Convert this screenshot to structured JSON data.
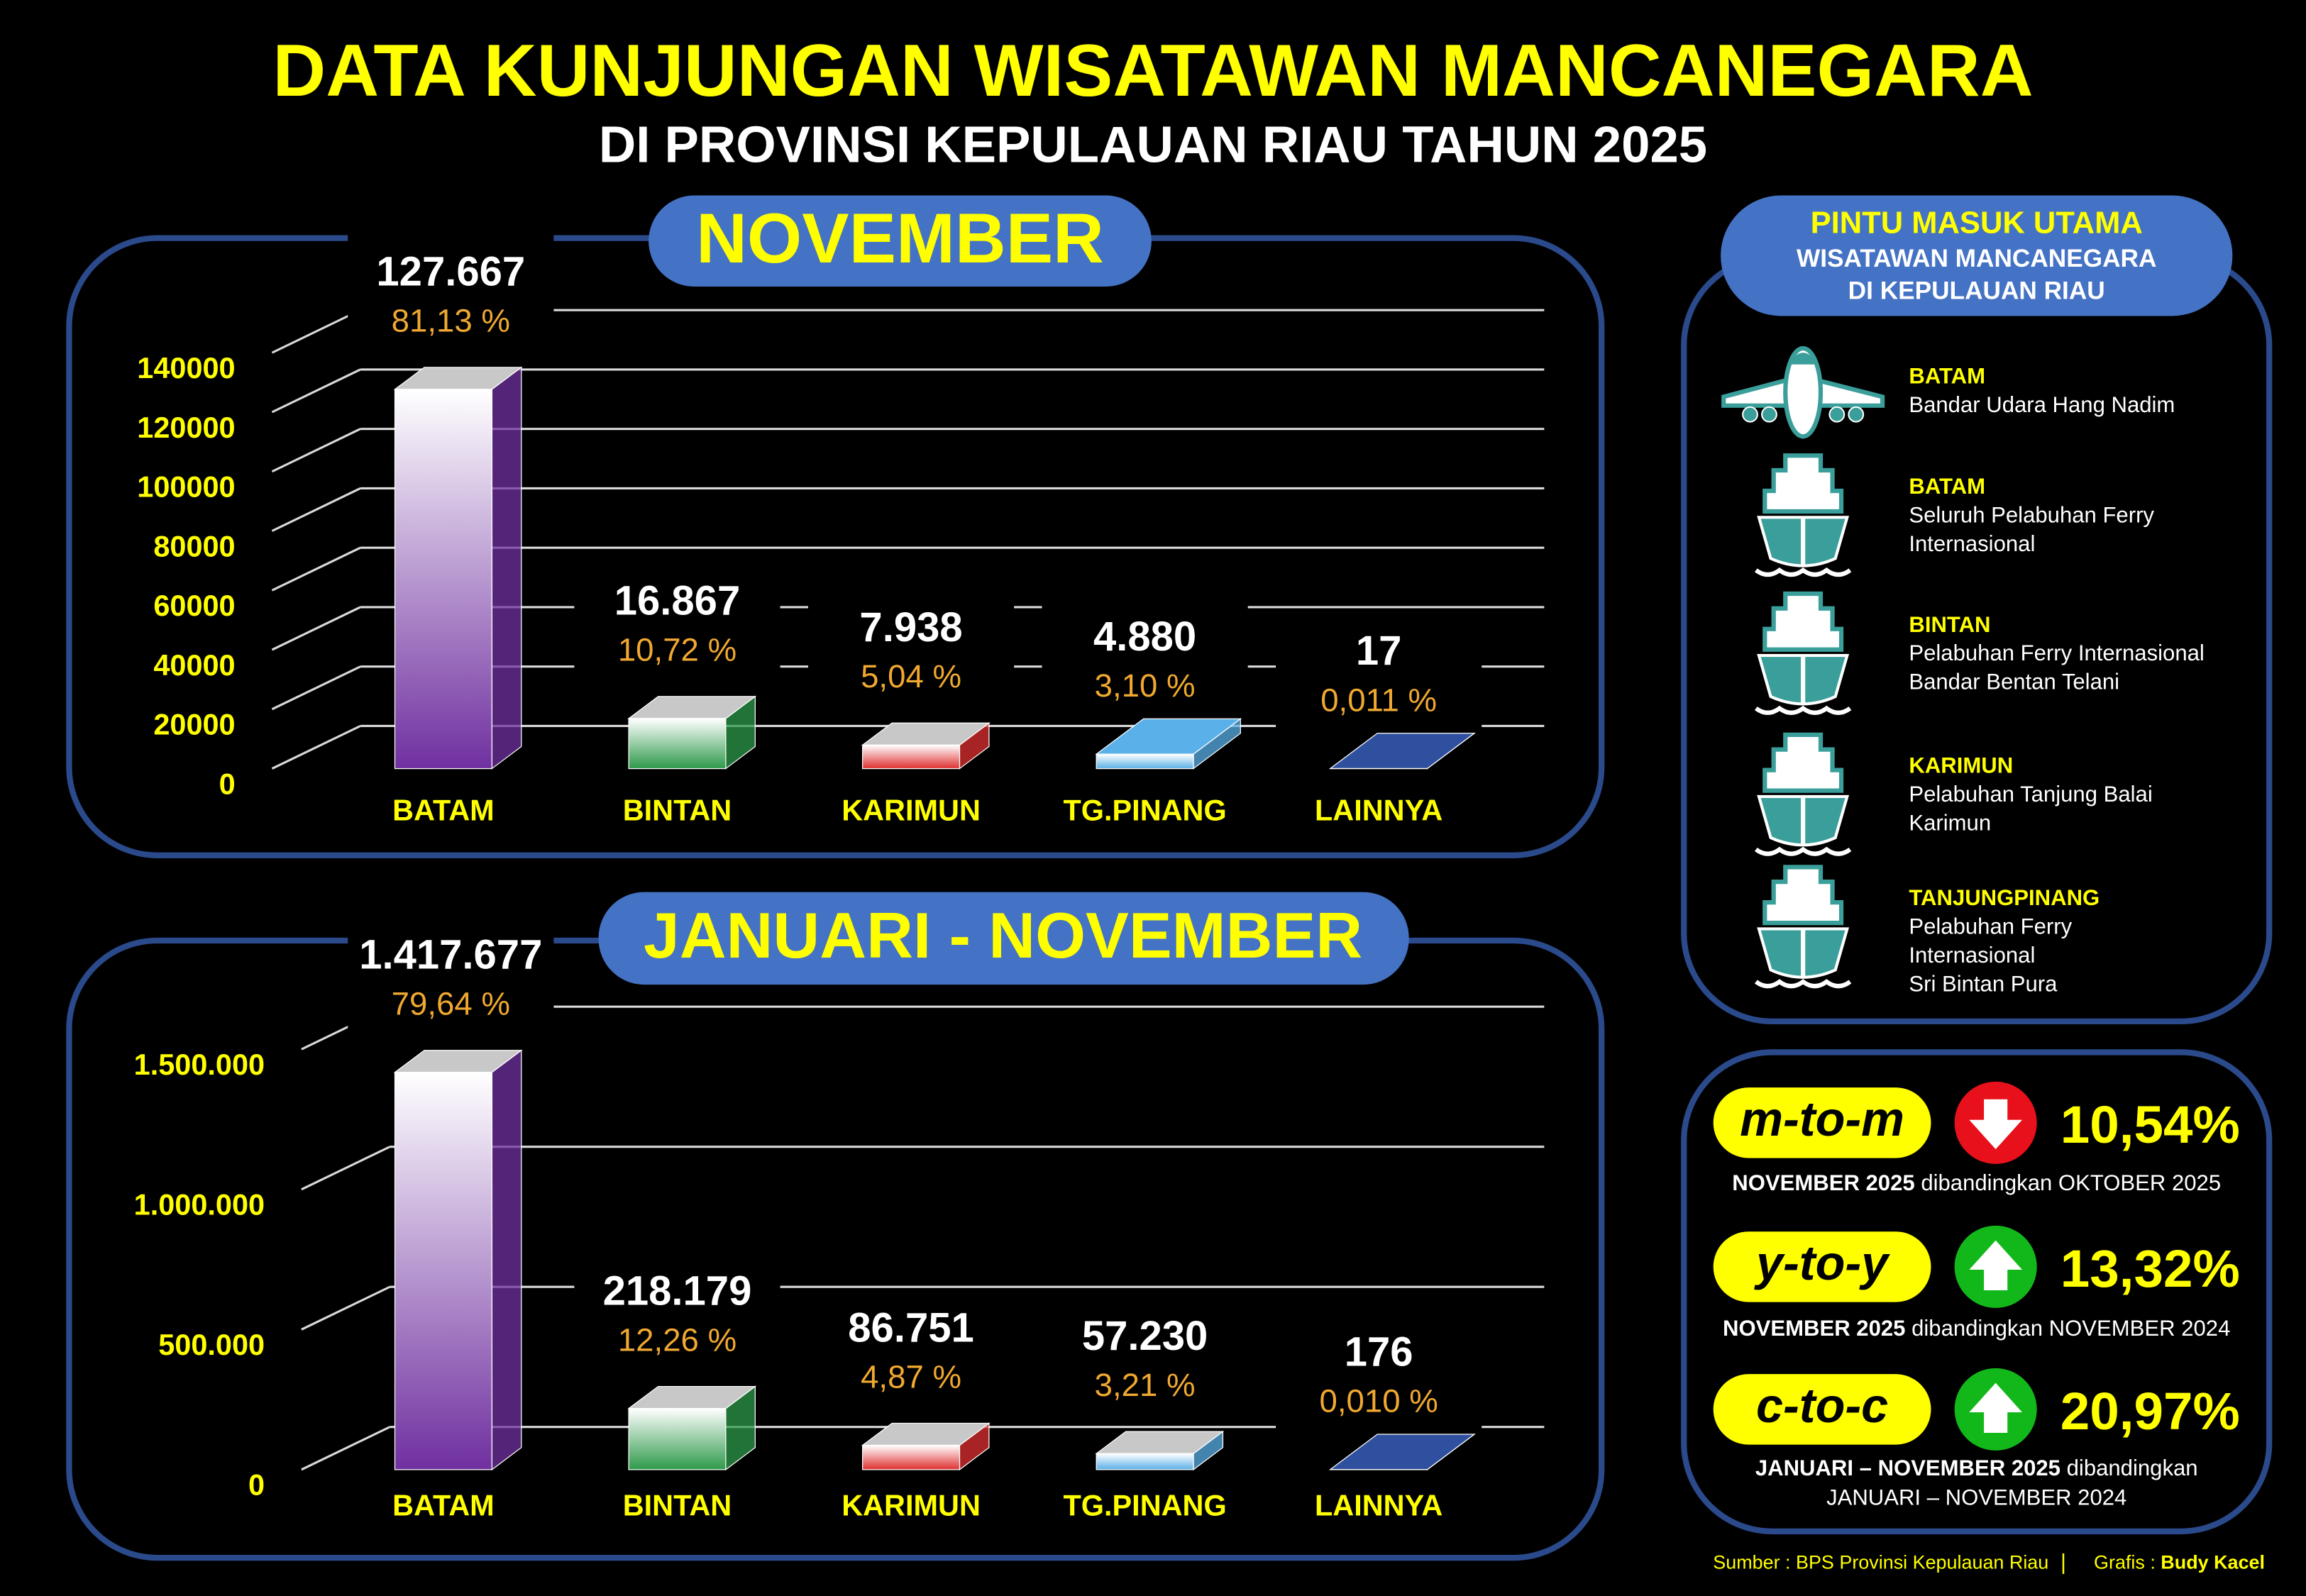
{
  "header": {
    "title": "DATA KUNJUNGAN WISATAWAN MANCANEGARA",
    "subtitle": "DI PROVINSI KEPULAUAN RIAU TAHUN 2025"
  },
  "chart_data": [
    {
      "type": "bar",
      "title": "NOVEMBER",
      "categories": [
        "BATAM",
        "BINTAN",
        "KARIMUN",
        "TG.PINANG",
        "LAINNYA"
      ],
      "values": [
        127667,
        16867,
        7938,
        4880,
        17
      ],
      "value_labels": [
        "127.667",
        "16.867",
        "7.938",
        "4.880",
        "17"
      ],
      "shares": [
        81.13,
        10.72,
        5.04,
        3.1,
        0.011
      ],
      "share_labels": [
        "81,13 %",
        "10,72 %",
        "5,04 %",
        "3,10 %",
        "0,011 %"
      ],
      "colors": [
        "#7030a0",
        "#2e9a4a",
        "#e03030",
        "#5ab0e8",
        "#2f4f9f"
      ],
      "ylim": [
        0,
        140000
      ],
      "yticks": [
        0,
        20000,
        40000,
        60000,
        80000,
        100000,
        120000,
        140000
      ],
      "grid": true
    },
    {
      "type": "bar",
      "title": "JANUARI - NOVEMBER",
      "categories": [
        "BATAM",
        "BINTAN",
        "KARIMUN",
        "TG.PINANG",
        "LAINNYA"
      ],
      "values": [
        1417677,
        218179,
        86751,
        57230,
        176
      ],
      "value_labels": [
        "1.417.677",
        "218.179",
        "86.751",
        "57.230",
        "176"
      ],
      "shares": [
        79.64,
        12.26,
        4.87,
        3.21,
        0.01
      ],
      "share_labels": [
        "79,64 %",
        "12,26 %",
        "4,87 %",
        "3,21 %",
        "0,010 %"
      ],
      "colors": [
        "#7030a0",
        "#2e9a4a",
        "#e03030",
        "#5ab0e8",
        "#2f4f9f"
      ],
      "ylim": [
        0,
        1500000
      ],
      "yticks": [
        0,
        {
          "value": 500000,
          "label": "500.000"
        },
        {
          "value": 1000000,
          "label": "1.000.000"
        },
        {
          "value": 1500000,
          "label": "1.500.000"
        }
      ],
      "grid": true
    }
  ],
  "entry_points": {
    "title": "PINTU MASUK UTAMA",
    "subtitle_lines": [
      "WISATAWAN MANCANEGARA",
      "DI KEPULAUAN RIAU"
    ],
    "items": [
      {
        "name": "BATAM",
        "lines": [
          "Bandar Udara Hang Nadim"
        ]
      },
      {
        "name": "BATAM",
        "lines": [
          "Seluruh Pelabuhan Ferry",
          "Internasional"
        ]
      },
      {
        "name": "BINTAN",
        "lines": [
          "Pelabuhan Ferry Internasional",
          "Bandar Bentan Telani"
        ]
      },
      {
        "name": "KARIMUN",
        "lines": [
          "Pelabuhan Tanjung Balai",
          "Karimun"
        ]
      },
      {
        "name": "TANJUNGPINANG",
        "lines": [
          "Pelabuhan Ferry",
          "Internasional",
          "Sri Bintan Pura"
        ]
      }
    ]
  },
  "growth": [
    {
      "label": "m-to-m",
      "value": "10,54%",
      "note_bold": "NOVEMBER 2025",
      "note": "dibandingkan OKTOBER 2025"
    },
    {
      "label": "y-to-y",
      "value": "13,32%",
      "note_bold": "NOVEMBER 2025",
      "note": "dibandingkan NOVEMBER 2024"
    },
    {
      "label": "c-to-c",
      "value": "20,97%",
      "note_bold": "JANUARI – NOVEMBER 2025",
      "note": "dibandingkan",
      "note_line2": "JANUARI – NOVEMBER 2024"
    }
  ],
  "footer": {
    "source_label": "Sumber :",
    "source": "BPS Provinsi Kepulauan Riau",
    "credit_label": "Grafis :",
    "credit": "Budy Kacel"
  }
}
